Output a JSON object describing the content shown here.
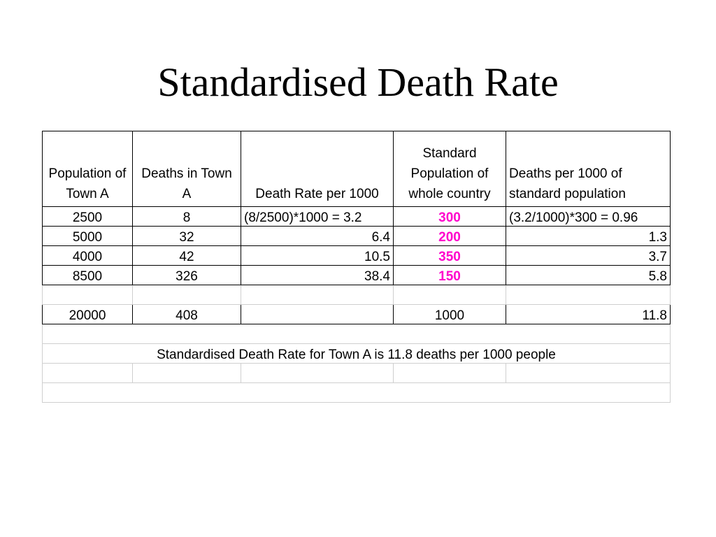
{
  "title": "Standardised Death Rate",
  "colors": {
    "highlight": "#ff00cc",
    "grid": "#cfcfcf",
    "border": "#000000"
  },
  "headers": [
    "Population of Town A",
    "Deaths in Town A",
    "Death Rate per 1000",
    "Standard Population of whole country",
    "Deaths per 1000 of standard population"
  ],
  "rows": [
    [
      "2500",
      "8",
      "(8/2500)*1000 =  3.2",
      "300",
      "(3.2/1000)*300 = 0.96"
    ],
    [
      "5000",
      "32",
      "6.4",
      "200",
      "1.3"
    ],
    [
      "4000",
      "42",
      "10.5",
      "350",
      "3.7"
    ],
    [
      "8500",
      "326",
      "38.4",
      "150",
      "5.8"
    ]
  ],
  "totals": [
    "20000",
    "408",
    "",
    "1000",
    "11.8"
  ],
  "conclusion": "Standardised Death Rate for Town A is 11.8 deaths per 1000 people"
}
